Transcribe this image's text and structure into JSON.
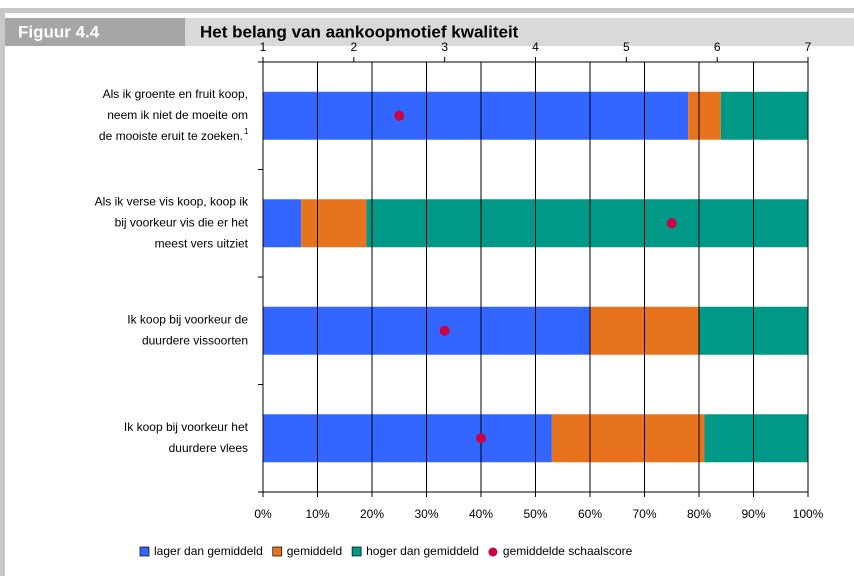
{
  "chart_data": {
    "type": "stacked-bar-horizontal",
    "figure_label": "Figuur 4.4",
    "title": "Het belang van aankoopmotief kwaliteit",
    "categories": [
      [
        "Als ik groente en fruit koop,",
        "neem ik niet de moeite om",
        "de mooiste eruit te zoeken."
      ],
      [
        "Als ik verse vis koop, koop ik",
        "bij voorkeur vis die er het",
        "meest vers uitziet"
      ],
      [
        "Ik koop bij voorkeur de",
        "duurdere vissoorten"
      ],
      [
        "Ik koop bij voorkeur het",
        "duurdere vlees"
      ]
    ],
    "footnote_marker": "1",
    "series": [
      {
        "name": "lager dan gemiddeld",
        "color": "#3366ff",
        "values": [
          78,
          7,
          60,
          53
        ]
      },
      {
        "name": "gemiddeld",
        "color": "#e8731e",
        "values": [
          6,
          12,
          20,
          28
        ]
      },
      {
        "name": "hoger dan gemiddeld",
        "color": "#009988",
        "values": [
          16,
          81,
          20,
          19
        ]
      }
    ],
    "score_series": {
      "name": "gemiddelde schaalscore",
      "color": "#cc0044",
      "values": [
        2.5,
        5.5,
        3.0,
        3.4
      ]
    },
    "xlim": [
      0,
      100
    ],
    "xticks": [
      {
        "value": 0,
        "label": "0%"
      },
      {
        "value": 10,
        "label": "10%"
      },
      {
        "value": 20,
        "label": "20%"
      },
      {
        "value": 30,
        "label": "30%"
      },
      {
        "value": 40,
        "label": "40%"
      },
      {
        "value": 50,
        "label": "50%"
      },
      {
        "value": 60,
        "label": "60%"
      },
      {
        "value": 70,
        "label": "70%"
      },
      {
        "value": 80,
        "label": "80%"
      },
      {
        "value": 90,
        "label": "90%"
      },
      {
        "value": 100,
        "label": "100%"
      }
    ],
    "x2lim": [
      1,
      7
    ],
    "x2ticks": [
      1,
      2,
      3,
      4,
      5,
      6,
      7
    ],
    "grid": true
  }
}
